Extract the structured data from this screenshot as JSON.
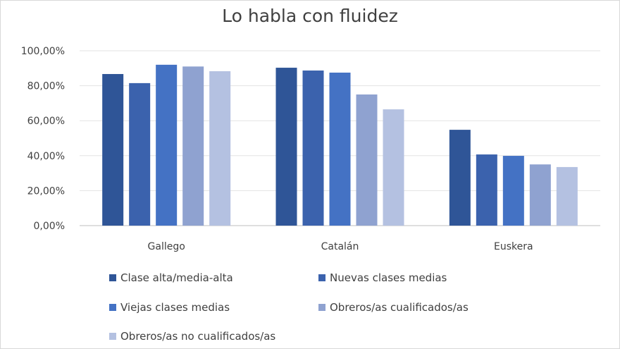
{
  "chart_data": {
    "type": "bar",
    "title": "Lo habla con fluidez",
    "xlabel": "",
    "ylabel": "",
    "ylim": [
      0,
      100
    ],
    "y_ticks": [
      "0,00%",
      "20,00%",
      "40,00%",
      "60,00%",
      "80,00%",
      "100,00%"
    ],
    "y_tick_values": [
      0,
      20,
      40,
      60,
      80,
      100
    ],
    "grid": true,
    "legend_position": "bottom",
    "categories": [
      "Gallego",
      "Catalán",
      "Euskera"
    ],
    "series": [
      {
        "name": "Clase alta/media-alta",
        "color": "#2f5597",
        "values": [
          86.7,
          90.3,
          54.8
        ]
      },
      {
        "name": "Nuevas clases medias",
        "color": "#3b62ad",
        "values": [
          81.5,
          88.7,
          40.7
        ]
      },
      {
        "name": "Viejas clases medias",
        "color": "#4472c4",
        "values": [
          92.0,
          87.5,
          39.9
        ]
      },
      {
        "name": "Obreros/as cualificados/as",
        "color": "#8fa2d0",
        "values": [
          91.0,
          75.0,
          35.0
        ]
      },
      {
        "name": "Obreros/as no cualificados/as",
        "color": "#b4c1e1",
        "values": [
          88.3,
          66.5,
          33.5
        ]
      }
    ]
  }
}
